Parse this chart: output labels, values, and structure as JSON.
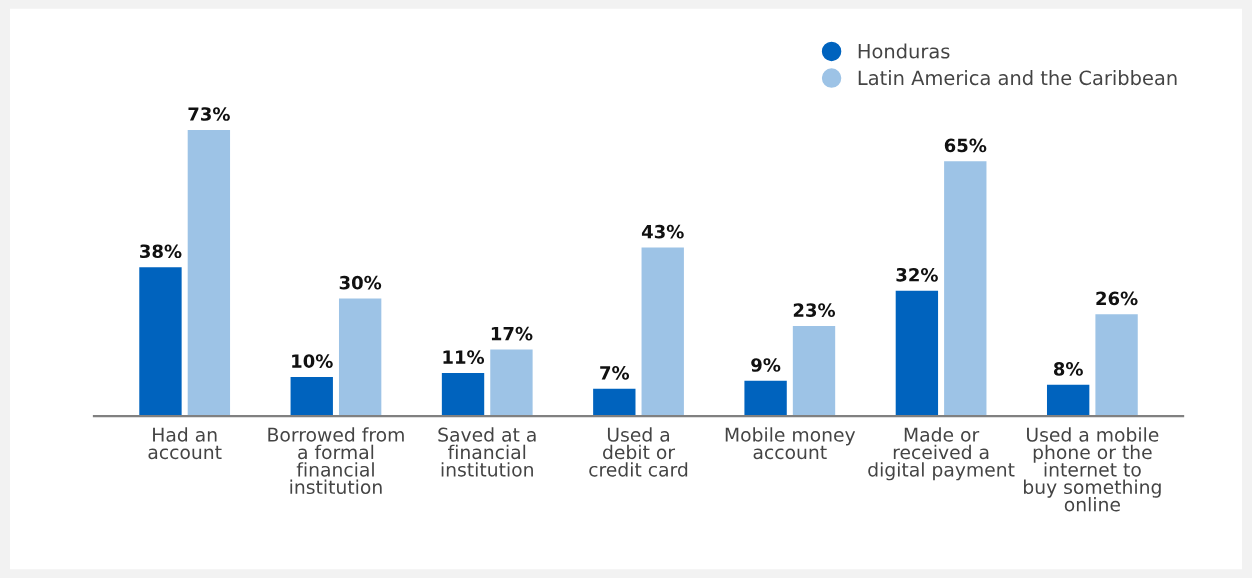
{
  "chart_data": {
    "type": "bar",
    "categories": [
      "Had an\naccount",
      "Borrowed from\na formal\nfinancial\ninstitution",
      "Saved at a\nfinancial\ninstitution",
      "Used a\ndebit or\ncredit card",
      "Mobile money\naccount",
      "Made or\nreceived a\ndigital payment",
      "Used a mobile\nphone or the\ninternet to\nbuy something\nonline"
    ],
    "series": [
      {
        "name": "Honduras",
        "color": "#0063be",
        "values": [
          38,
          10,
          11,
          7,
          9,
          32,
          8
        ],
        "value_labels": [
          "38%",
          "10%",
          "11%",
          "7%",
          "9%",
          "32%",
          "8%"
        ]
      },
      {
        "name": "Latin America and the Caribbean",
        "color": "#9dc3e6",
        "values": [
          73,
          30,
          17,
          43,
          23,
          65,
          26
        ],
        "value_labels": [
          "73%",
          "30%",
          "17%",
          "43%",
          "23%",
          "65%",
          "26%"
        ]
      }
    ],
    "legend": "top right",
    "grid": false,
    "tick_labels": "x"
  }
}
